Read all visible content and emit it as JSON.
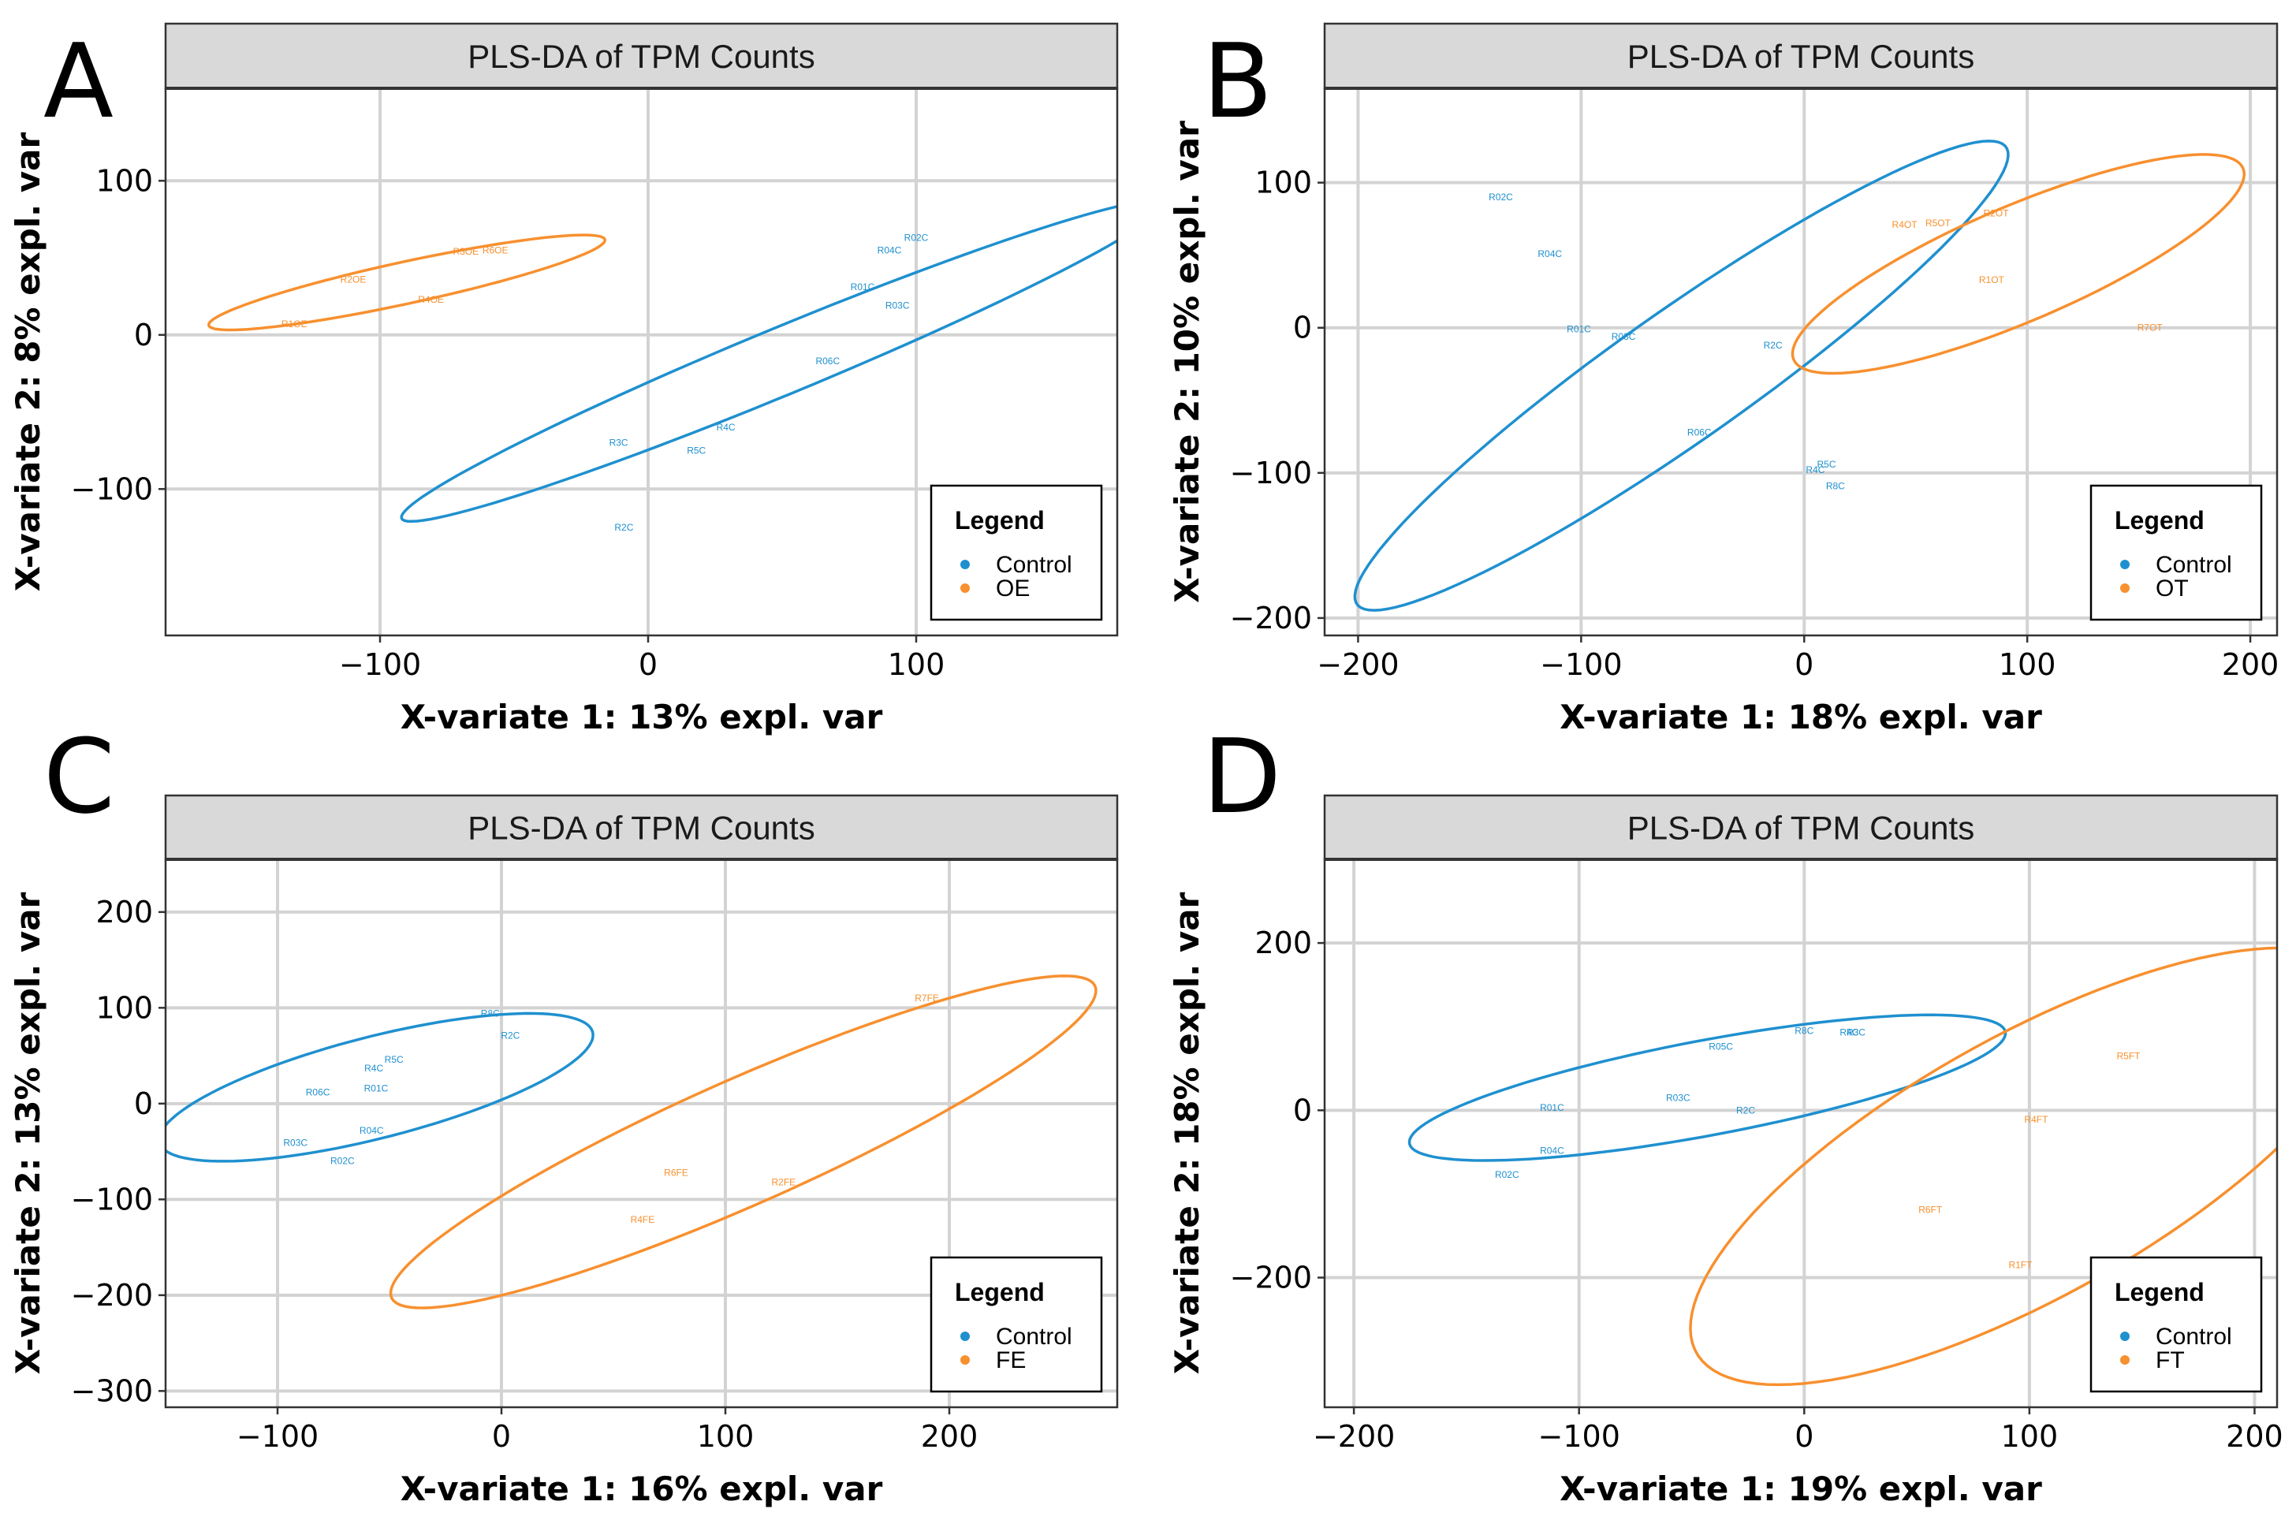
{
  "figure_title": "PLS-DA score plots of TPM counts",
  "colors": {
    "Control": "#1f90cf",
    "treatment": "#f7902f",
    "grid": "#d3d3d3",
    "strip_bg": "#d9d9d9"
  },
  "chart_data": [
    {
      "panel": "A",
      "type": "scatter",
      "title": "PLS-DA of TPM Counts",
      "xlabel": "X-variate 1: 13% expl. var",
      "ylabel": "X-variate 2: 8% expl. var",
      "xlim": [
        -180,
        175
      ],
      "ylim": [
        -195,
        160
      ],
      "xticks": [
        -100,
        0,
        100
      ],
      "yticks": [
        -100,
        0,
        100
      ],
      "xtick_labels": [
        "−100",
        "0",
        "100"
      ],
      "ytick_labels": [
        "−100",
        "0",
        "100"
      ],
      "legend": {
        "title": "Legend",
        "entries": [
          "Control",
          "OE"
        ]
      },
      "series": [
        {
          "name": "Control",
          "points": [
            {
              "label": "R02C",
              "x": 100,
              "y": 63
            },
            {
              "label": "R04C",
              "x": 90,
              "y": 55
            },
            {
              "label": "R01C",
              "x": 80,
              "y": 31
            },
            {
              "label": "R03C",
              "x": 93,
              "y": 19
            },
            {
              "label": "R06C",
              "x": 67,
              "y": -17
            },
            {
              "label": "R4C",
              "x": 29,
              "y": -60
            },
            {
              "label": "R3C",
              "x": -11,
              "y": -70
            },
            {
              "label": "R5C",
              "x": 18,
              "y": -75
            },
            {
              "label": "R2C",
              "x": -9,
              "y": -125
            }
          ],
          "ellipse": {
            "center": [
              50,
              -17
            ],
            "semi_axes": [
              175,
              19
            ],
            "angle_deg": 36
          }
        },
        {
          "name": "OE",
          "points": [
            {
              "label": "R3OE",
              "x": -68,
              "y": 54
            },
            {
              "label": "R6OE",
              "x": -57,
              "y": 55
            },
            {
              "label": "R2OE",
              "x": -110,
              "y": 36
            },
            {
              "label": "R4OE",
              "x": -81,
              "y": 23
            },
            {
              "label": "R1OE",
              "x": -132,
              "y": 7
            }
          ],
          "ellipse": {
            "center": [
              -90,
              34
            ],
            "semi_axes": [
              79,
              13
            ],
            "angle_deg": 21
          }
        }
      ]
    },
    {
      "panel": "B",
      "type": "scatter",
      "title": "PLS-DA of TPM Counts",
      "xlabel": "X-variate 1: 18% expl. var",
      "ylabel": "X-variate 2: 10% expl. var",
      "xlim": [
        -215,
        212
      ],
      "ylim": [
        -212,
        165
      ],
      "xticks": [
        -200,
        -100,
        0,
        100,
        200
      ],
      "yticks": [
        -200,
        -100,
        0,
        100
      ],
      "xtick_labels": [
        "−200",
        "−100",
        "0",
        "100",
        "200"
      ],
      "ytick_labels": [
        "−200",
        "−100",
        "0",
        "100"
      ],
      "legend": {
        "title": "Legend",
        "entries": [
          "Control",
          "OT"
        ]
      },
      "series": [
        {
          "name": "Control",
          "points": [
            {
              "label": "R02C",
              "x": -136,
              "y": 90
            },
            {
              "label": "R04C",
              "x": -114,
              "y": 51
            },
            {
              "label": "R01C",
              "x": -101,
              "y": -1
            },
            {
              "label": "R03C",
              "x": -81,
              "y": -6
            },
            {
              "label": "R2C",
              "x": -14,
              "y": -12
            },
            {
              "label": "R06C",
              "x": -47,
              "y": -72
            },
            {
              "label": "R5C",
              "x": 10,
              "y": -94
            },
            {
              "label": "R4C",
              "x": 5,
              "y": -98
            },
            {
              "label": "R8C",
              "x": 14,
              "y": -109
            }
          ],
          "ellipse": {
            "center": [
              -55,
              -33
            ],
            "semi_axes": [
              215,
              37
            ],
            "angle_deg": 48
          }
        },
        {
          "name": "OT",
          "points": [
            {
              "label": "R4OT",
              "x": 45,
              "y": 71
            },
            {
              "label": "R5OT",
              "x": 60,
              "y": 72
            },
            {
              "label": "R2OT",
              "x": 86,
              "y": 79
            },
            {
              "label": "R1OT",
              "x": 84,
              "y": 33
            },
            {
              "label": "R7OT",
              "x": 155,
              "y": 0
            }
          ],
          "ellipse": {
            "center": [
              96,
              44
            ],
            "semi_axes": [
              121,
              36
            ],
            "angle_deg": 35
          }
        }
      ]
    },
    {
      "panel": "C",
      "type": "scatter",
      "title": "PLS-DA of TPM Counts",
      "xlabel": "X-variate 1: 16% expl. var",
      "ylabel": "X-variate 2: 13% expl. var",
      "xlim": [
        -150,
        275
      ],
      "ylim": [
        -317,
        255
      ],
      "xticks": [
        -100,
        0,
        100,
        200
      ],
      "yticks": [
        -300,
        -200,
        -100,
        0,
        100,
        200
      ],
      "xtick_labels": [
        "−100",
        "0",
        "100",
        "200"
      ],
      "ytick_labels": [
        "−300",
        "−200",
        "−100",
        "0",
        "100",
        "200"
      ],
      "legend": {
        "title": "Legend",
        "entries": [
          "Control",
          "FE"
        ]
      },
      "series": [
        {
          "name": "Control",
          "points": [
            {
              "label": "R8C",
              "x": -5,
              "y": 94
            },
            {
              "label": "R2C",
              "x": 4,
              "y": 71
            },
            {
              "label": "R5C",
              "x": -48,
              "y": 46
            },
            {
              "label": "R4C",
              "x": -57,
              "y": 37
            },
            {
              "label": "R01C",
              "x": -56,
              "y": 16
            },
            {
              "label": "R06C",
              "x": -82,
              "y": 12
            },
            {
              "label": "R04C",
              "x": -58,
              "y": -28
            },
            {
              "label": "R03C",
              "x": -92,
              "y": -41
            },
            {
              "label": "R02C",
              "x": -71,
              "y": -60
            }
          ],
          "ellipse": {
            "center": [
              -56,
              17
            ],
            "semi_axes": [
              115,
              46
            ],
            "angle_deg": 36
          }
        },
        {
          "name": "FE",
          "points": [
            {
              "label": "R7FE",
              "x": 190,
              "y": 110
            },
            {
              "label": "R6FE",
              "x": 78,
              "y": -72
            },
            {
              "label": "R2FE",
              "x": 126,
              "y": -82
            },
            {
              "label": "R4FE",
              "x": 63,
              "y": -121
            }
          ],
          "ellipse": {
            "center": [
              108,
              -40
            ],
            "semi_axes": [
              229,
              49
            ],
            "angle_deg": 48
          }
        }
      ]
    },
    {
      "panel": "D",
      "type": "scatter",
      "title": "PLS-DA of TPM Counts",
      "xlabel": "X-variate 1: 19% expl. var",
      "ylabel": "X-variate 2: 18% expl. var",
      "xlim": [
        -213,
        210
      ],
      "ylim": [
        -355,
        300
      ],
      "xticks": [
        -200,
        -100,
        0,
        100,
        200
      ],
      "yticks": [
        -200,
        0,
        200
      ],
      "xtick_labels": [
        "−200",
        "−100",
        "0",
        "100",
        "200"
      ],
      "ytick_labels": [
        "−200",
        "0",
        "200"
      ],
      "legend": {
        "title": "Legend",
        "entries": [
          "Control",
          "FT"
        ]
      },
      "series": [
        {
          "name": "Control",
          "points": [
            {
              "label": "R8C",
              "x": 0,
              "y": 95
            },
            {
              "label": "R4C",
              "x": 20,
              "y": 93
            },
            {
              "label": "R3C",
              "x": 23,
              "y": 93
            },
            {
              "label": "R05C",
              "x": -37,
              "y": 76
            },
            {
              "label": "R03C",
              "x": -56,
              "y": 15
            },
            {
              "label": "R2C",
              "x": -26,
              "y": 0
            },
            {
              "label": "R01C",
              "x": -112,
              "y": 3
            },
            {
              "label": "R04C",
              "x": -112,
              "y": -48
            },
            {
              "label": "R02C",
              "x": -132,
              "y": -77
            }
          ],
          "ellipse": {
            "center": [
              -43,
              27
            ],
            "semi_axes": [
              150,
              51
            ],
            "angle_deg": 30
          }
        },
        {
          "name": "FT",
          "points": [
            {
              "label": "R5FT",
              "x": 144,
              "y": 65
            },
            {
              "label": "R4FT",
              "x": 103,
              "y": -11
            },
            {
              "label": "R6FT",
              "x": 56,
              "y": -119
            },
            {
              "label": "R1FT",
              "x": 96,
              "y": -185
            }
          ],
          "ellipse": {
            "center": [
              100,
              -67
            ],
            "semi_axes": [
              287,
              92
            ],
            "angle_deg": 64
          }
        }
      ]
    }
  ]
}
